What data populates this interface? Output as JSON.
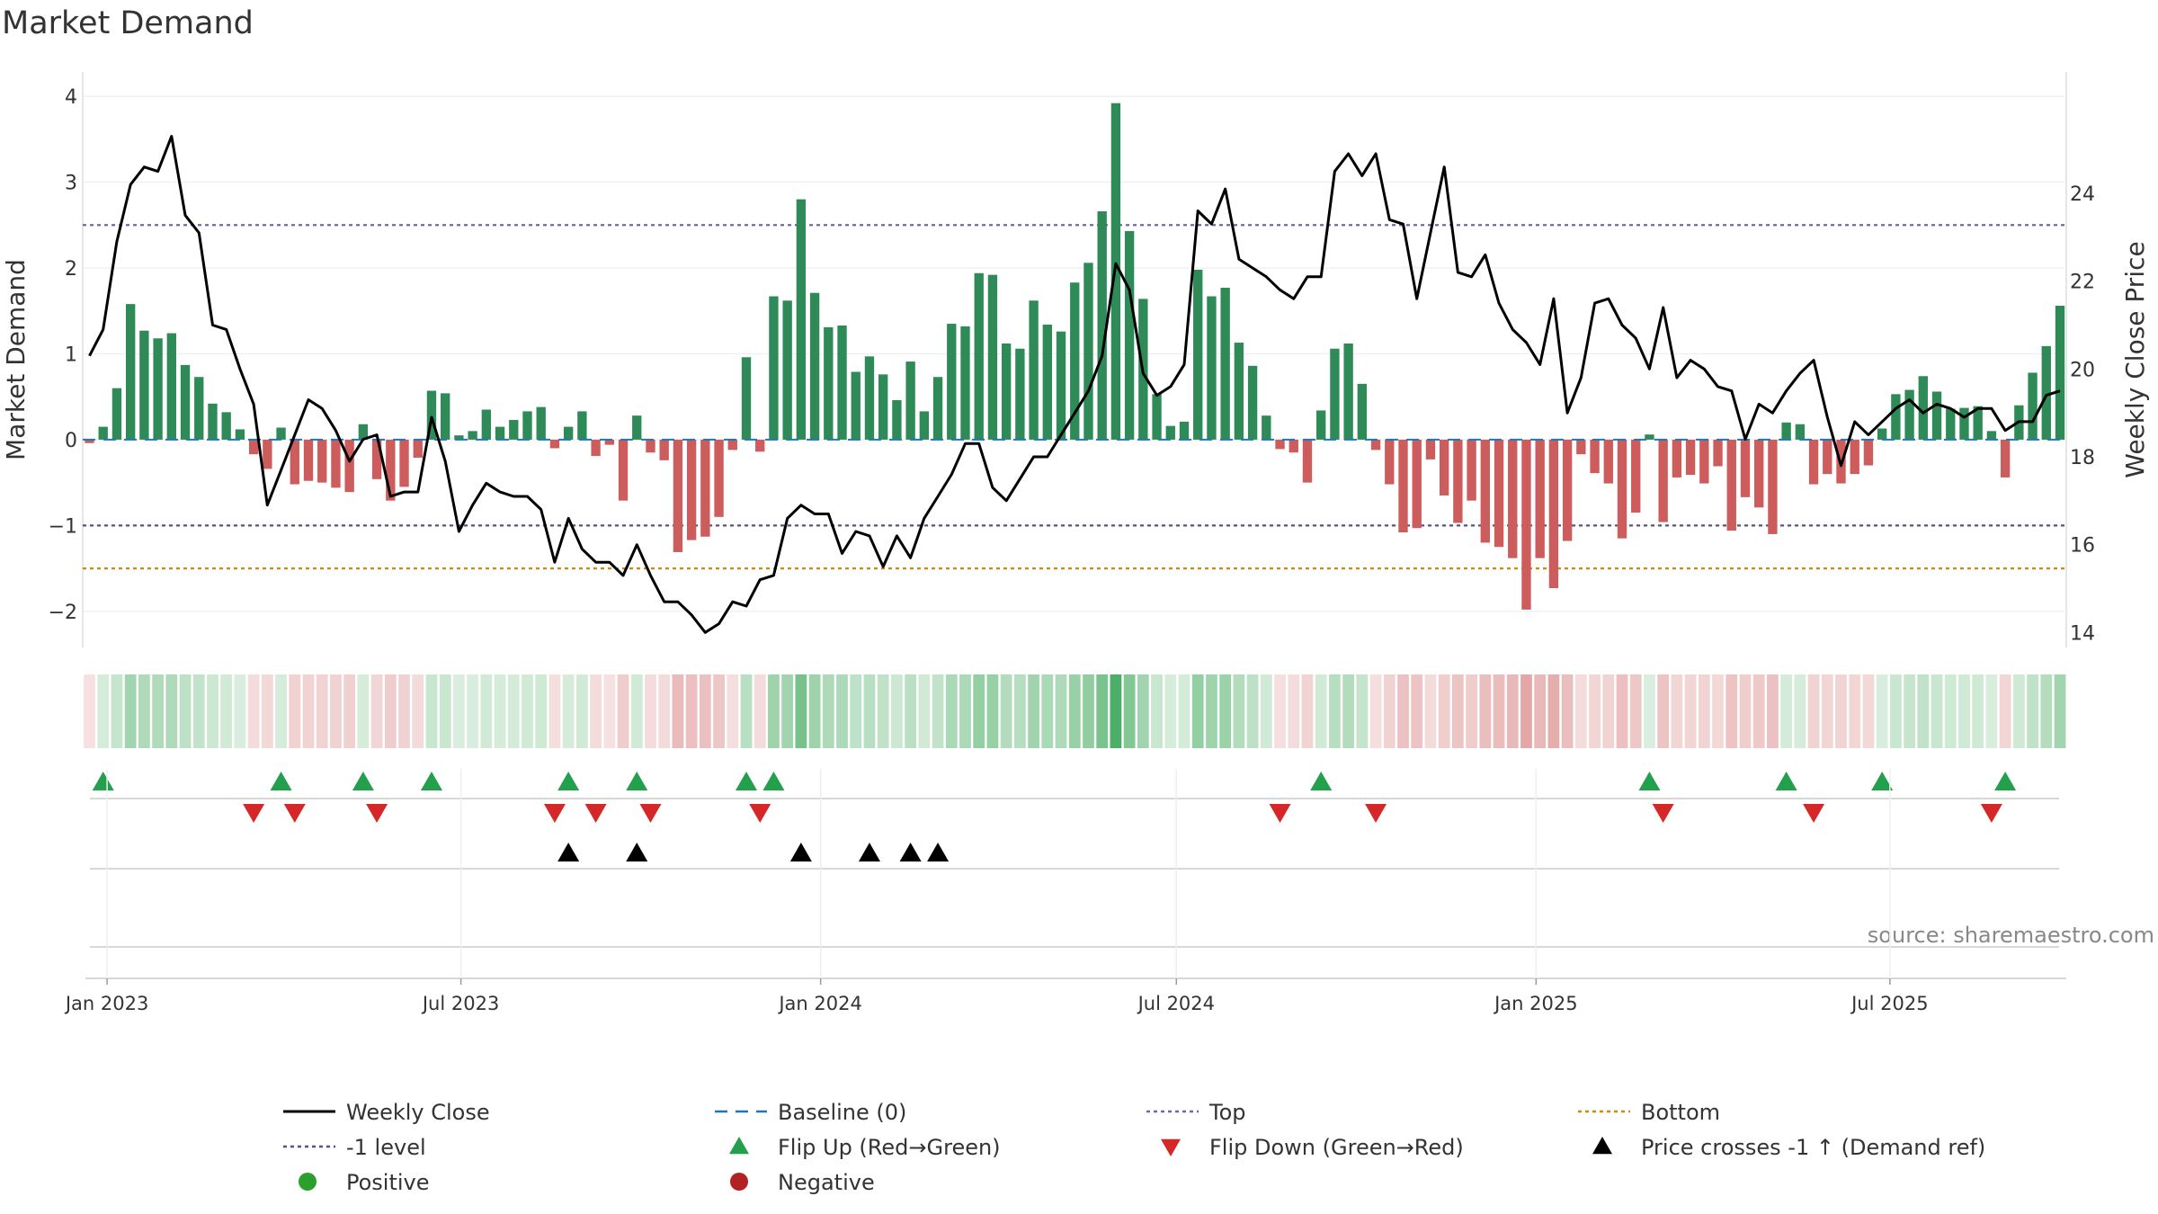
{
  "chart_data": {
    "type": "bar",
    "title": "Market Demand",
    "left_axis": {
      "label": "Market Demand",
      "ylim": [
        -2.4,
        4.2
      ],
      "ticks": [
        -2,
        -1,
        0,
        1,
        2,
        3,
        4
      ],
      "tick_labels": [
        "−2",
        "−1",
        "0",
        "1",
        "2",
        "3",
        "4"
      ]
    },
    "right_axis": {
      "label": "Weekly Close Price",
      "ylim": [
        13.7,
        26.6
      ],
      "ticks": [
        14,
        16,
        18,
        20,
        22,
        24
      ],
      "tick_labels": [
        "14",
        "16",
        "18",
        "20",
        "22",
        "24"
      ]
    },
    "x_axis": {
      "start": "2022-12-23",
      "step_days": 7,
      "ticks": [
        {
          "label": "Jan 2023",
          "date": "2023-01-01"
        },
        {
          "label": "Jul 2023",
          "date": "2023-07-01"
        },
        {
          "label": "Jan 2024",
          "date": "2024-01-01"
        },
        {
          "label": "Jul 2024",
          "date": "2024-07-01"
        },
        {
          "label": "Jan 2025",
          "date": "2025-01-01"
        },
        {
          "label": "Jul 2025",
          "date": "2025-07-01"
        }
      ]
    },
    "reference_lines": {
      "top": 2.5,
      "minus_one": -1.0,
      "bottom": -1.5,
      "baseline": 0
    },
    "series": [
      {
        "name": "Weekly Close",
        "kind": "line",
        "axis": "right",
        "color": "#000000",
        "values": [
          20.3,
          20.9,
          22.9,
          24.2,
          24.6,
          24.5,
          25.3,
          23.5,
          23.1,
          21.0,
          20.9,
          20.0,
          19.2,
          16.9,
          17.7,
          18.5,
          19.3,
          19.1,
          18.6,
          17.9,
          18.4,
          18.5,
          17.1,
          17.2,
          17.2,
          18.9,
          17.9,
          16.3,
          16.9,
          17.4,
          17.2,
          17.1,
          17.1,
          16.8,
          15.6,
          16.6,
          15.9,
          15.6,
          15.6,
          15.3,
          16.0,
          15.3,
          14.7,
          14.7,
          14.4,
          14.0,
          14.2,
          14.7,
          14.6,
          15.2,
          15.3,
          16.6,
          16.9,
          16.7,
          16.7,
          15.8,
          16.3,
          16.2,
          15.5,
          16.2,
          15.7,
          16.6,
          17.1,
          17.6,
          18.3,
          18.3,
          17.3,
          17.0,
          17.5,
          18.0,
          18.0,
          18.5,
          19.0,
          19.5,
          20.3,
          22.4,
          21.8,
          19.9,
          19.4,
          19.6,
          20.1,
          23.6,
          23.3,
          24.1,
          22.5,
          22.3,
          22.1,
          21.8,
          21.6,
          22.1,
          22.1,
          24.5,
          24.9,
          24.4,
          24.9,
          23.4,
          23.3,
          21.6,
          23.1,
          24.6,
          22.2,
          22.1,
          22.6,
          21.5,
          20.9,
          20.6,
          20.1,
          21.6,
          19.0,
          19.8,
          21.5,
          21.6,
          21.0,
          20.7,
          20.0,
          21.4,
          19.8,
          20.2,
          20.0,
          19.6,
          19.5,
          18.4,
          19.2,
          19.0,
          19.5,
          19.9,
          20.2,
          18.9,
          17.8,
          18.8,
          18.5,
          18.8,
          19.1,
          19.3,
          19.0,
          19.2,
          19.1,
          18.9,
          19.1,
          19.1,
          18.6,
          18.8,
          18.8,
          19.4,
          19.5
        ]
      },
      {
        "name": "Market Demand",
        "kind": "bar",
        "axis": "left",
        "values": [
          -0.04,
          0.15,
          0.6,
          1.58,
          1.27,
          1.18,
          1.24,
          0.87,
          0.73,
          0.42,
          0.32,
          0.12,
          -0.17,
          -0.34,
          0.14,
          -0.52,
          -0.48,
          -0.5,
          -0.56,
          -0.61,
          0.18,
          -0.46,
          -0.71,
          -0.55,
          -0.21,
          0.57,
          0.54,
          0.05,
          0.1,
          0.35,
          0.15,
          0.23,
          0.33,
          0.38,
          -0.1,
          0.15,
          0.33,
          -0.19,
          -0.06,
          -0.71,
          0.28,
          -0.15,
          -0.24,
          -1.31,
          -1.17,
          -1.13,
          -0.9,
          -0.12,
          0.96,
          -0.14,
          1.67,
          1.62,
          2.8,
          1.71,
          1.31,
          1.33,
          0.79,
          0.97,
          0.76,
          0.46,
          0.91,
          0.33,
          0.73,
          1.35,
          1.32,
          1.94,
          1.92,
          1.12,
          1.06,
          1.62,
          1.34,
          1.26,
          1.83,
          2.06,
          2.66,
          3.92,
          2.43,
          1.64,
          0.53,
          0.16,
          0.21,
          1.98,
          1.67,
          1.77,
          1.13,
          0.86,
          0.28,
          -0.11,
          -0.15,
          -0.5,
          0.34,
          1.06,
          1.12,
          0.65,
          -0.12,
          -0.52,
          -1.08,
          -1.03,
          -0.23,
          -0.65,
          -0.97,
          -0.71,
          -1.2,
          -1.25,
          -1.38,
          -1.98,
          -1.38,
          -1.73,
          -1.18,
          -0.17,
          -0.39,
          -0.51,
          -1.15,
          -0.85,
          0.06,
          -0.96,
          -0.44,
          -0.41,
          -0.51,
          -0.31,
          -1.06,
          -0.67,
          -0.79,
          -1.1,
          0.2,
          0.18,
          -0.52,
          -0.4,
          -0.51,
          -0.4,
          -0.3,
          0.13,
          0.53,
          0.58,
          0.74,
          0.56,
          0.36,
          0.37,
          0.39,
          0.1,
          -0.44,
          0.4,
          0.78,
          1.09,
          1.56
        ]
      }
    ],
    "heat_strip": "Market Demand intensity (green positive, red negative)",
    "flip_up_weeks": [
      1,
      14,
      20,
      25,
      35,
      40,
      48,
      50,
      90,
      114,
      124,
      131,
      140
    ],
    "flip_down_weeks": [
      12,
      15,
      21,
      34,
      37,
      41,
      49,
      87,
      94,
      115,
      126,
      139
    ],
    "price_cross_weeks": [
      35,
      40,
      52,
      57,
      60,
      62
    ]
  },
  "colors": {
    "positive": "#2e8b57",
    "negative": "#cd5c5c",
    "line": "#000000",
    "top": "#6a6aa8",
    "minus_one": "#555577",
    "bottom": "#d4870a",
    "baseline": "#1f77b4",
    "flip_up": "#22a04b",
    "flip_down": "#d62728",
    "cross": "#000000",
    "pos_marker": "#2ca02c",
    "neg_marker": "#b22222"
  },
  "legend": [
    {
      "label": "Weekly Close",
      "symbol": "line-solid",
      "color": "#000000"
    },
    {
      "label": "Baseline (0)",
      "symbol": "line-dash",
      "color": "#1f77b4"
    },
    {
      "label": "Top",
      "symbol": "line-dot",
      "color": "#6a6aa8"
    },
    {
      "label": "Bottom",
      "symbol": "line-dot",
      "color": "#d4870a"
    },
    {
      "label": "-1 level",
      "symbol": "line-dot",
      "color": "#555577"
    },
    {
      "label": "Flip Up (Red→Green)",
      "symbol": "triangle-up",
      "color": "#22a04b"
    },
    {
      "label": "Flip Down (Green→Red)",
      "symbol": "triangle-down",
      "color": "#d62728"
    },
    {
      "label": "Price crosses -1 ↑ (Demand ref)",
      "symbol": "triangle-up",
      "color": "#000000"
    },
    {
      "label": "Positive",
      "symbol": "circle",
      "color": "#2ca02c"
    },
    {
      "label": "Negative",
      "symbol": "circle",
      "color": "#b22222"
    }
  ],
  "source": "source: sharemaestro.com"
}
